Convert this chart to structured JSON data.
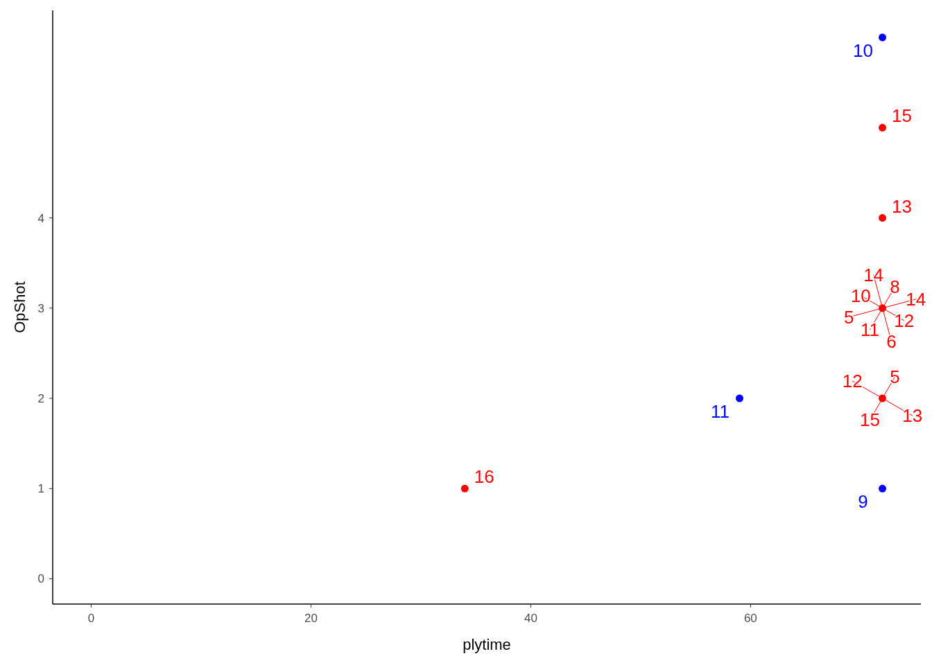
{
  "chart_data": {
    "type": "scatter",
    "xlabel": "plytime",
    "ylabel": "OpShot",
    "xlim": [
      -3.5,
      75.5
    ],
    "xticks": [
      0,
      20,
      40,
      60
    ],
    "ylim": [
      -0.28,
      6.3
    ],
    "yticks": [
      0,
      1,
      2,
      3,
      4
    ],
    "grid": false,
    "marker": "circle",
    "series": [
      {
        "color": "#0000ff",
        "x": [
          72,
          59,
          72
        ],
        "values": [
          6,
          2,
          1
        ]
      },
      {
        "color": "#ff0000",
        "x": [
          72,
          72,
          72,
          72,
          34
        ],
        "values": [
          5,
          4,
          3,
          2,
          1
        ]
      }
    ],
    "annotations": [
      {
        "text": "10",
        "x": 72,
        "y": 6
      },
      {
        "text": "11",
        "x": 59,
        "y": 2
      },
      {
        "text": "9",
        "x": 72,
        "y": 1
      },
      {
        "text": "8",
        "x": 72,
        "y": 3
      },
      {
        "text": "14",
        "x": 72,
        "y": 3
      },
      {
        "text": "12",
        "x": 72,
        "y": 3
      },
      {
        "text": "6",
        "x": 72,
        "y": 3
      },
      {
        "text": "5",
        "x": 72,
        "y": 2
      },
      {
        "text": "13",
        "x": 72,
        "y": 2
      },
      {
        "text": "15",
        "x": 72,
        "y": 2
      },
      {
        "text": "15",
        "x": 72,
        "y": 5
      },
      {
        "text": "13",
        "x": 72,
        "y": 4
      },
      {
        "text": "11",
        "x": 72,
        "y": 3
      },
      {
        "text": "5",
        "x": 72,
        "y": 3
      },
      {
        "text": "10",
        "x": 72,
        "y": 3
      },
      {
        "text": "14",
        "x": 72,
        "y": 3
      },
      {
        "text": "12",
        "x": 72,
        "y": 2
      },
      {
        "text": "16",
        "x": 34,
        "y": 1
      }
    ]
  }
}
